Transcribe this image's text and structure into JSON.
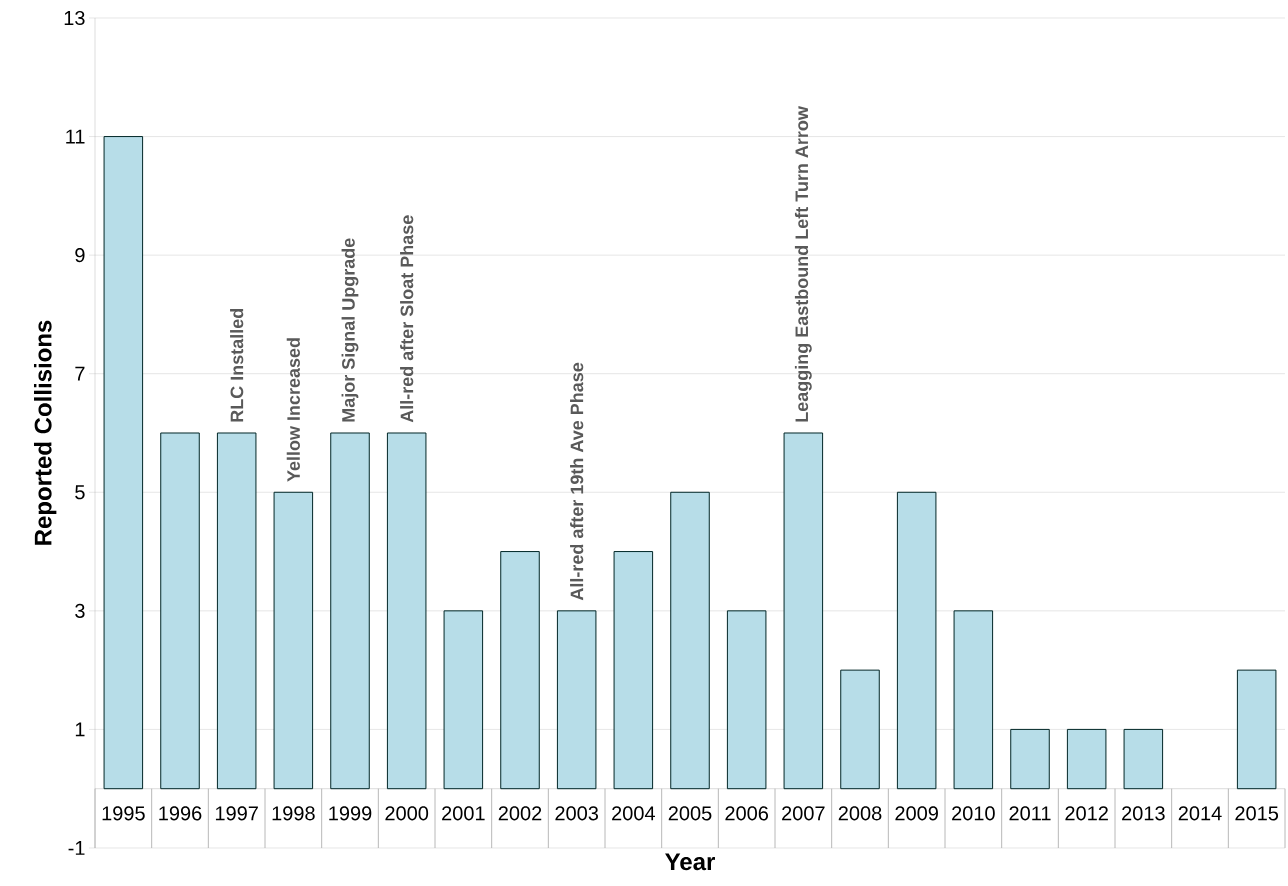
{
  "chart_data": {
    "type": "bar",
    "xlabel": "Year",
    "ylabel": "Reported Collisions",
    "categories": [
      "1995",
      "1996",
      "1997",
      "1998",
      "1999",
      "2000",
      "2001",
      "2002",
      "2003",
      "2004",
      "2005",
      "2006",
      "2007",
      "2008",
      "2009",
      "2010",
      "2011",
      "2012",
      "2013",
      "2014",
      "2015"
    ],
    "values": [
      11,
      6,
      6,
      5,
      6,
      6,
      3,
      4,
      3,
      4,
      5,
      3,
      6,
      2,
      5,
      3,
      1,
      1,
      1,
      null,
      2
    ],
    "color": "#b7dde8",
    "ylim": [
      -1,
      13
    ],
    "yticks": [
      -1,
      1,
      3,
      5,
      7,
      9,
      11,
      13
    ],
    "grid": "y",
    "annotations": [
      {
        "text": "RLC Installed",
        "x": "1997",
        "y": 6
      },
      {
        "text": "Yellow Increased",
        "x": "1998",
        "y": 5
      },
      {
        "text": "Major Signal Upgrade",
        "x": "1999",
        "y": 6
      },
      {
        "text": "All-red after Sloat Phase",
        "x": "2000",
        "y": 6
      },
      {
        "text": "All-red after 19th Ave Phase",
        "x": "2003",
        "y": 3
      },
      {
        "text": "Leagging Eastbound Left Turn Arrow",
        "x": "2007",
        "y": 6
      }
    ]
  }
}
